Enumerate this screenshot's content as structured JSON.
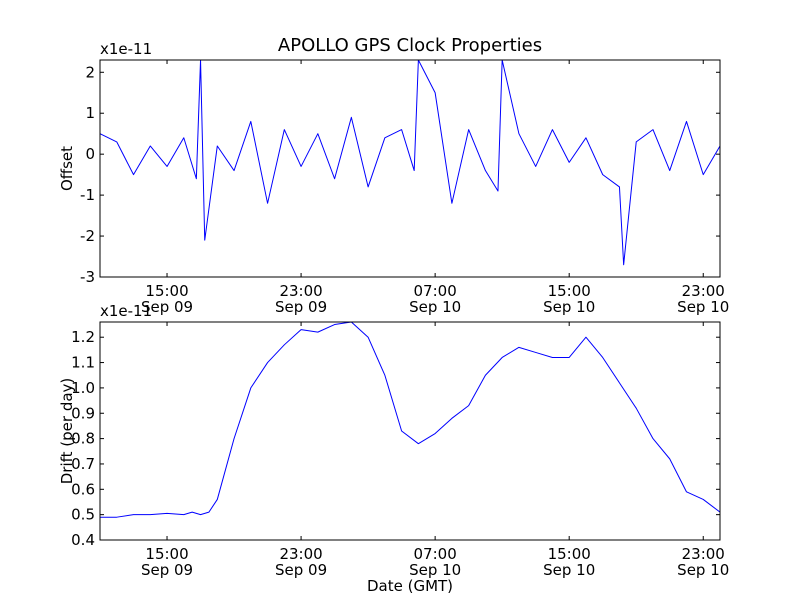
{
  "chart_data": [
    {
      "type": "line",
      "title": "APOLLO GPS Clock Properties",
      "xlabel": "",
      "ylabel": "Offset",
      "scale_label": "x1e-11",
      "xlim": [
        "2010-09-09 11:00",
        "2010-09-11 00:00"
      ],
      "ylim": [
        -3,
        2.3
      ],
      "grid": false,
      "color": "#0000ff",
      "y_ticks": [
        -3,
        -2,
        -1,
        0,
        1,
        2
      ],
      "y_tick_labels": [
        "-3",
        "-2",
        "-1",
        "0",
        "1",
        "2"
      ],
      "x_ticks": [
        "2010-09-09 15:00",
        "2010-09-09 23:00",
        "2010-09-10 07:00",
        "2010-09-10 15:00",
        "2010-09-10 23:00"
      ],
      "x_tick_labels": [
        [
          "15:00",
          "Sep 09"
        ],
        [
          "23:00",
          "Sep 09"
        ],
        [
          "07:00",
          "Sep 10"
        ],
        [
          "15:00",
          "Sep 10"
        ],
        [
          "23:00",
          "Sep 10"
        ]
      ],
      "series": [
        {
          "x": [
            "2010-09-09 11:00",
            "2010-09-09 12:00",
            "2010-09-09 13:00",
            "2010-09-09 14:00",
            "2010-09-09 15:00",
            "2010-09-09 16:00",
            "2010-09-09 16:45",
            "2010-09-09 17:00",
            "2010-09-09 17:15",
            "2010-09-09 18:00",
            "2010-09-09 19:00",
            "2010-09-09 20:00",
            "2010-09-09 21:00",
            "2010-09-09 22:00",
            "2010-09-09 23:00",
            "2010-09-10 00:00",
            "2010-09-10 01:00",
            "2010-09-10 02:00",
            "2010-09-10 03:00",
            "2010-09-10 04:00",
            "2010-09-10 05:00",
            "2010-09-10 05:45",
            "2010-09-10 06:00",
            "2010-09-10 07:00",
            "2010-09-10 08:00",
            "2010-09-10 09:00",
            "2010-09-10 10:00",
            "2010-09-10 10:45",
            "2010-09-10 11:00",
            "2010-09-10 12:00",
            "2010-09-10 13:00",
            "2010-09-10 14:00",
            "2010-09-10 15:00",
            "2010-09-10 16:00",
            "2010-09-10 17:00",
            "2010-09-10 18:00",
            "2010-09-10 18:15",
            "2010-09-10 19:00",
            "2010-09-10 20:00",
            "2010-09-10 21:00",
            "2010-09-10 22:00",
            "2010-09-10 23:00",
            "2010-09-11 00:00"
          ],
          "values": [
            0.5,
            0.3,
            -0.5,
            0.2,
            -0.3,
            0.4,
            -0.6,
            2.3,
            -2.1,
            0.2,
            -0.4,
            0.8,
            -1.2,
            0.6,
            -0.3,
            0.5,
            -0.6,
            0.9,
            -0.8,
            0.4,
            0.6,
            -0.4,
            2.3,
            1.5,
            -1.2,
            0.6,
            -0.4,
            -0.9,
            2.3,
            0.5,
            -0.3,
            0.6,
            -0.2,
            0.4,
            -0.5,
            -0.8,
            -2.7,
            0.3,
            0.6,
            -0.4,
            0.8,
            -0.5,
            0.2
          ]
        }
      ]
    },
    {
      "type": "line",
      "title": "",
      "xlabel": "Date (GMT)",
      "ylabel": "Drift (per day)",
      "scale_label": "x1e-11",
      "xlim": [
        "2010-09-09 11:00",
        "2010-09-11 00:00"
      ],
      "ylim": [
        0.4,
        1.26
      ],
      "grid": false,
      "color": "#0000ff",
      "y_ticks": [
        0.4,
        0.5,
        0.6,
        0.7,
        0.8,
        0.9,
        1.0,
        1.1,
        1.2
      ],
      "y_tick_labels": [
        "0.4",
        "0.5",
        "0.6",
        "0.7",
        "0.8",
        "0.9",
        "1.0",
        "1.1",
        "1.2"
      ],
      "x_ticks": [
        "2010-09-09 15:00",
        "2010-09-09 23:00",
        "2010-09-10 07:00",
        "2010-09-10 15:00",
        "2010-09-10 23:00"
      ],
      "x_tick_labels": [
        [
          "15:00",
          "Sep 09"
        ],
        [
          "23:00",
          "Sep 09"
        ],
        [
          "07:00",
          "Sep 10"
        ],
        [
          "15:00",
          "Sep 10"
        ],
        [
          "23:00",
          "Sep 10"
        ]
      ],
      "series": [
        {
          "x": [
            "2010-09-09 11:00",
            "2010-09-09 12:00",
            "2010-09-09 13:00",
            "2010-09-09 14:00",
            "2010-09-09 15:00",
            "2010-09-09 16:00",
            "2010-09-09 16:30",
            "2010-09-09 17:00",
            "2010-09-09 17:30",
            "2010-09-09 18:00",
            "2010-09-09 19:00",
            "2010-09-09 20:00",
            "2010-09-09 21:00",
            "2010-09-09 22:00",
            "2010-09-09 23:00",
            "2010-09-10 00:00",
            "2010-09-10 01:00",
            "2010-09-10 02:00",
            "2010-09-10 03:00",
            "2010-09-10 04:00",
            "2010-09-10 05:00",
            "2010-09-10 06:00",
            "2010-09-10 07:00",
            "2010-09-10 08:00",
            "2010-09-10 09:00",
            "2010-09-10 10:00",
            "2010-09-10 11:00",
            "2010-09-10 12:00",
            "2010-09-10 13:00",
            "2010-09-10 14:00",
            "2010-09-10 15:00",
            "2010-09-10 16:00",
            "2010-09-10 17:00",
            "2010-09-10 18:00",
            "2010-09-10 19:00",
            "2010-09-10 20:00",
            "2010-09-10 21:00",
            "2010-09-10 22:00",
            "2010-09-10 23:00",
            "2010-09-11 00:00"
          ],
          "values": [
            0.49,
            0.49,
            0.5,
            0.5,
            0.505,
            0.5,
            0.51,
            0.5,
            0.51,
            0.56,
            0.8,
            1.0,
            1.1,
            1.17,
            1.23,
            1.22,
            1.25,
            1.26,
            1.2,
            1.05,
            0.83,
            0.78,
            0.82,
            0.88,
            0.93,
            1.05,
            1.12,
            1.16,
            1.14,
            1.12,
            1.12,
            1.2,
            1.12,
            1.02,
            0.92,
            0.8,
            0.72,
            0.59,
            0.56,
            0.51
          ]
        }
      ]
    }
  ]
}
